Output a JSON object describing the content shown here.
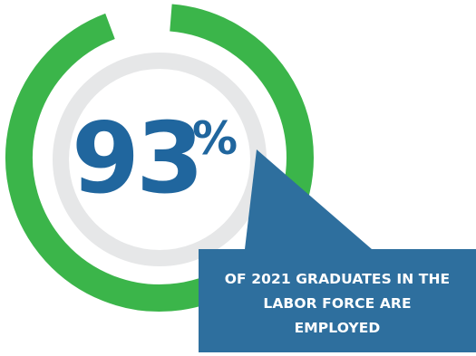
{
  "chart_data": {
    "type": "donut",
    "value_percent": 93,
    "center_number": "93",
    "center_unit": "%",
    "caption": "OF 2021 GRADUATES IN THE LABOR FORCE ARE EMPLOYED",
    "colors": {
      "ring_fill": "#3BB54A",
      "inner_ring": "#E6E7E8",
      "number": "#20669E",
      "callout_bg": "#2E6F9E",
      "callout_text": "#FFFFFF"
    }
  }
}
